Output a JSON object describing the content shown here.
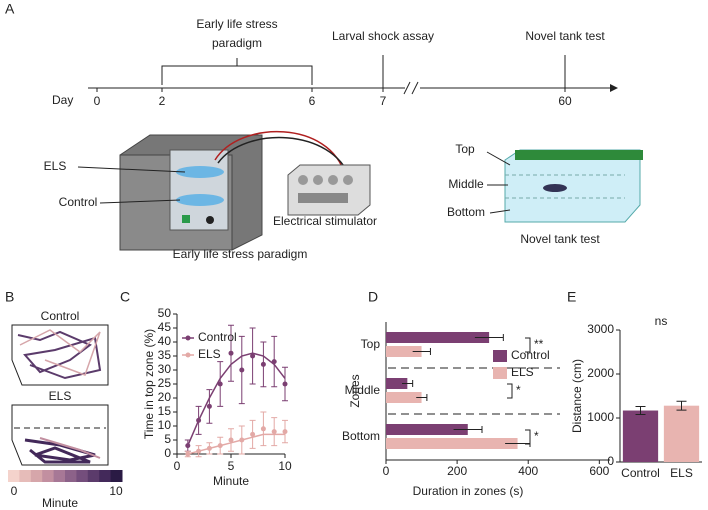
{
  "panel_labels": [
    "A",
    "B",
    "C",
    "D",
    "E"
  ],
  "timeline": {
    "axis_label": "Day",
    "days": [
      0,
      2,
      6,
      7,
      60
    ],
    "events": [
      "Early life stress",
      "paradigm",
      "Larval shock assay",
      "Novel tank test"
    ]
  },
  "illustration": {
    "incubator_labels": [
      "ELS",
      "Control"
    ],
    "stimulator": "Electrical stimulator",
    "caption_left": "Early life stress paradigm",
    "tank_zones": [
      "Top",
      "Middle",
      "Bottom"
    ],
    "caption_right": "Novel tank test"
  },
  "heatmaps": {
    "groups": [
      "Control",
      "ELS"
    ],
    "colorbar": {
      "label": "Minute",
      "ticks": [
        0,
        10
      ],
      "colors": [
        "#f4d3cc",
        "#e6bcb9",
        "#d6a6aa",
        "#c28fa0",
        "#a77896",
        "#8c6289",
        "#744e7c",
        "#5b3b6b",
        "#43295a",
        "#2a1a44"
      ]
    }
  },
  "chart_data": [
    {
      "type": "line",
      "xlabel": "Minute",
      "ylabel": "Time in top zone (%)",
      "xlim": [
        0,
        10
      ],
      "xticks": [
        0,
        5,
        10
      ],
      "ylim": [
        0,
        50
      ],
      "yticks": [
        0,
        5,
        10,
        15,
        20,
        25,
        30,
        35,
        40,
        45,
        50
      ],
      "x": [
        1,
        2,
        3,
        4,
        5,
        6,
        7,
        8,
        9,
        10
      ],
      "series": [
        {
          "name": "Control",
          "color": "#7b3f72",
          "values": [
            3,
            12,
            17,
            25,
            36,
            30,
            35,
            32,
            33,
            25
          ],
          "errors": [
            2,
            5,
            6,
            8,
            10,
            12,
            10,
            8,
            9,
            6
          ],
          "fit": [
            3,
            12,
            20,
            27,
            32,
            35,
            36,
            35,
            32,
            27
          ]
        },
        {
          "name": "ELS",
          "color": "#e3a9a6",
          "values": [
            0,
            1,
            2,
            3,
            5,
            5,
            7,
            9,
            8,
            8
          ],
          "errors": [
            1,
            2,
            2,
            3,
            4,
            5,
            5,
            6,
            5,
            4
          ],
          "fit": [
            0,
            1,
            2,
            3,
            4,
            5,
            6,
            7,
            7,
            7
          ]
        }
      ]
    },
    {
      "type": "hbar",
      "categories": [
        "Top",
        "Middle",
        "Bottom"
      ],
      "ylabel": "Zones",
      "xlabel": "Duration in zones (s)",
      "xlim": [
        0,
        630
      ],
      "xticks": [
        0,
        200,
        400,
        600
      ],
      "significance": [
        "**",
        "*",
        "*"
      ],
      "series": [
        {
          "name": "Control",
          "color": "#7b3f72",
          "values": [
            290,
            60,
            230
          ],
          "errors": [
            40,
            15,
            40
          ]
        },
        {
          "name": "ELS",
          "color": "#e8b4b0",
          "values": [
            100,
            100,
            370
          ],
          "errors": [
            25,
            15,
            35
          ]
        }
      ]
    },
    {
      "type": "bar",
      "categories": [
        "Control",
        "ELS"
      ],
      "values": [
        1170,
        1280
      ],
      "errors": [
        90,
        100
      ],
      "colors": [
        "#7b3f72",
        "#e8b4b0"
      ],
      "ylim": [
        0,
        3000
      ],
      "yticks": [
        0,
        1000,
        2000,
        3000
      ],
      "ylabel": "Distance (cm)",
      "annotation": "ns"
    }
  ]
}
